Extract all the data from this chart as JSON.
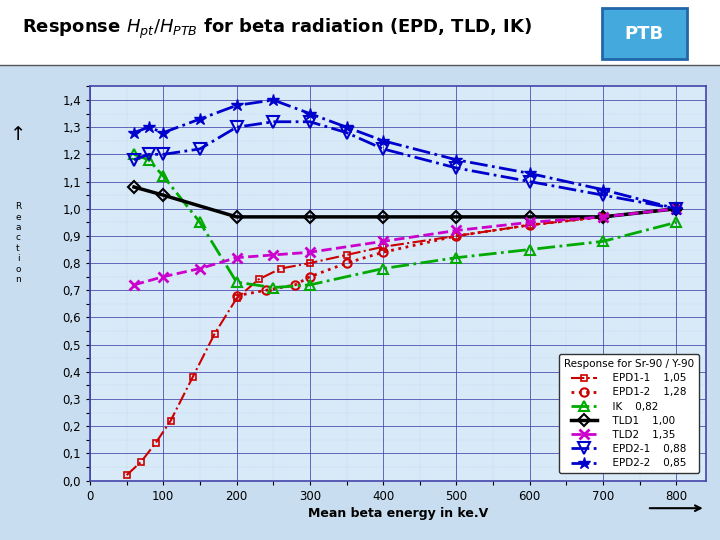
{
  "title_text": "Response ",
  "title_math_hpt": "$H_{pt}$",
  "title_slash": "/",
  "title_math_hptb": "$H_{PTB}$",
  "title_rest": " for beta radiation (EPD, TLD, IK)",
  "xlabel": "Mean beta energy in ke.V",
  "xlim": [
    0,
    840
  ],
  "ylim": [
    0.0,
    1.45
  ],
  "xticks": [
    0,
    100,
    200,
    300,
    400,
    500,
    600,
    700,
    800
  ],
  "yticks": [
    0.0,
    0.1,
    0.2,
    0.3,
    0.4,
    0.5,
    0.6,
    0.7,
    0.8,
    0.9,
    1.0,
    1.1,
    1.2,
    1.3,
    1.4
  ],
  "ytick_labels": [
    "0,0",
    "0,1",
    "0,2",
    "0,3",
    "0,4",
    "0,5",
    "0,6",
    "0,7",
    "0,8",
    "0,9",
    "1,0",
    "1,1",
    "1,2",
    "1,3",
    "1,4"
  ],
  "bg_color": "#c8ddf0",
  "plot_bg": "#d8eaf8",
  "grid_major_color": "#4444aa",
  "grid_minor_color": "#aabbdd",
  "legend_title": "Response for Sr-90 / Y-90",
  "series": [
    {
      "name": "EPD1-1",
      "value": "1,05",
      "color": "#cc0000",
      "linestyle": "-.",
      "marker": "s",
      "markersize": 5,
      "markerfacecolor": "none",
      "markeredgewidth": 1.2,
      "linewidth": 1.5,
      "markevery": [
        0,
        3,
        6,
        9,
        12
      ],
      "x": [
        50,
        70,
        90,
        110,
        140,
        170,
        200,
        230,
        260,
        300,
        350,
        400,
        500,
        600,
        700,
        800
      ],
      "y": [
        0.02,
        0.07,
        0.14,
        0.22,
        0.38,
        0.54,
        0.67,
        0.74,
        0.78,
        0.8,
        0.83,
        0.86,
        0.9,
        0.94,
        0.97,
        1.0
      ]
    },
    {
      "name": "EPD1-2",
      "value": "1,28",
      "color": "#cc0000",
      "linestyle": ":",
      "marker": "o",
      "markersize": 6,
      "markerfacecolor": "none",
      "markeredgewidth": 1.5,
      "linewidth": 2.0,
      "markevery": [
        0,
        2,
        4,
        6,
        8
      ],
      "x": [
        200,
        240,
        280,
        300,
        350,
        400,
        500,
        600,
        700,
        800
      ],
      "y": [
        0.68,
        0.7,
        0.72,
        0.75,
        0.8,
        0.84,
        0.9,
        0.94,
        0.97,
        1.0
      ]
    },
    {
      "name": "IK",
      "value": "0,82",
      "color": "#00aa00",
      "linestyle": "-.",
      "marker": "^",
      "markersize": 7,
      "markerfacecolor": "none",
      "markeredgewidth": 1.5,
      "linewidth": 2.0,
      "markevery": [
        0,
        2,
        4,
        6,
        8,
        10
      ],
      "x": [
        60,
        80,
        100,
        150,
        200,
        250,
        300,
        400,
        500,
        600,
        700,
        800
      ],
      "y": [
        1.2,
        1.18,
        1.12,
        0.95,
        0.73,
        0.71,
        0.72,
        0.78,
        0.82,
        0.85,
        0.88,
        0.95
      ]
    },
    {
      "name": "TLD1",
      "value": "1,00",
      "color": "#000000",
      "linestyle": "-",
      "marker": "D",
      "markersize": 6,
      "markerfacecolor": "none",
      "markeredgewidth": 1.5,
      "linewidth": 2.5,
      "markevery": [
        0,
        2,
        4,
        6,
        8
      ],
      "x": [
        60,
        100,
        200,
        300,
        400,
        500,
        600,
        700,
        800
      ],
      "y": [
        1.08,
        1.05,
        0.97,
        0.97,
        0.97,
        0.97,
        0.97,
        0.97,
        1.0
      ]
    },
    {
      "name": "TLD2",
      "value": "1,35",
      "color": "#cc00cc",
      "linestyle": "--",
      "marker": "x",
      "markersize": 7,
      "markerfacecolor": "#cc00cc",
      "markeredgewidth": 2.0,
      "linewidth": 2.0,
      "markevery": [
        0,
        2,
        4,
        6,
        8,
        10
      ],
      "x": [
        60,
        100,
        150,
        200,
        250,
        300,
        400,
        500,
        600,
        700,
        800
      ],
      "y": [
        0.72,
        0.75,
        0.78,
        0.82,
        0.83,
        0.84,
        0.88,
        0.92,
        0.95,
        0.97,
        1.0
      ]
    },
    {
      "name": "EPD2-1",
      "value": "0,88",
      "color": "#0000cc",
      "linestyle": "-.",
      "marker": "v",
      "markersize": 8,
      "markerfacecolor": "none",
      "markeredgewidth": 1.5,
      "linewidth": 2.0,
      "markevery": [
        0,
        2,
        4,
        6,
        8,
        10,
        12
      ],
      "x": [
        60,
        80,
        100,
        150,
        200,
        250,
        300,
        350,
        400,
        500,
        600,
        700,
        800
      ],
      "y": [
        1.18,
        1.2,
        1.2,
        1.22,
        1.3,
        1.32,
        1.32,
        1.28,
        1.22,
        1.15,
        1.1,
        1.05,
        1.0
      ]
    },
    {
      "name": "EPD2-2",
      "value": "0,85",
      "color": "#0000cc",
      "linestyle": "-.",
      "marker": "*",
      "markersize": 9,
      "markerfacecolor": "#0000cc",
      "markeredgewidth": 1.0,
      "linewidth": 2.0,
      "markevery": [
        0,
        2,
        4,
        6,
        8,
        10,
        12
      ],
      "x": [
        60,
        80,
        100,
        150,
        200,
        250,
        300,
        350,
        400,
        500,
        600,
        700,
        800
      ],
      "y": [
        1.28,
        1.3,
        1.28,
        1.33,
        1.38,
        1.4,
        1.35,
        1.3,
        1.25,
        1.18,
        1.13,
        1.07,
        1.0
      ]
    }
  ]
}
